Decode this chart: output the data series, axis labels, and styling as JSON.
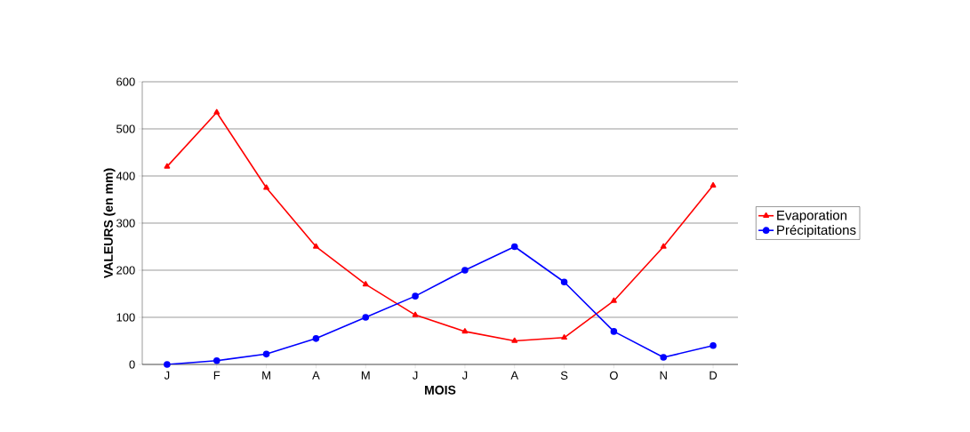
{
  "chart_data": {
    "type": "line",
    "xlabel": "MOIS",
    "ylabel": "VALEURS (en mm)",
    "categories": [
      "J",
      "F",
      "M",
      "A",
      "M",
      "J",
      "J",
      "A",
      "S",
      "O",
      "N",
      "D"
    ],
    "series": [
      {
        "name": "Evaporation",
        "color": "#ff0000",
        "marker": "triangle",
        "values": [
          420,
          535,
          375,
          250,
          170,
          105,
          70,
          50,
          57,
          135,
          250,
          380
        ]
      },
      {
        "name": "Précipitations",
        "color": "#0000ff",
        "marker": "circle",
        "values": [
          0,
          8,
          22,
          55,
          100,
          145,
          200,
          250,
          175,
          70,
          15,
          40
        ]
      }
    ],
    "ylim": [
      0,
      600
    ],
    "yticks": [
      0,
      100,
      200,
      300,
      400,
      500,
      600
    ],
    "grid": "y",
    "legend": "right",
    "line_style": "solid"
  }
}
